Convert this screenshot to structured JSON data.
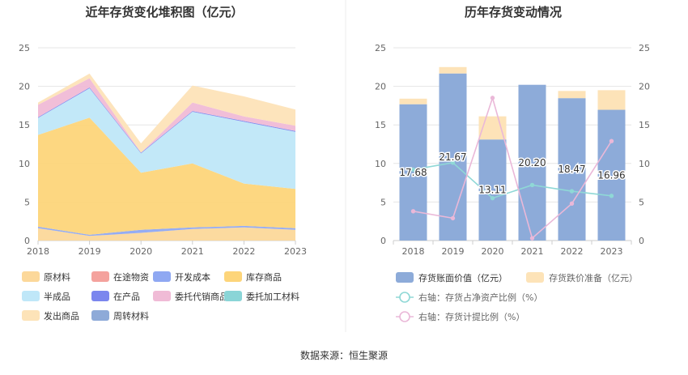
{
  "source": "数据来源：恒生聚源",
  "chart_data": [
    {
      "type": "area",
      "stacked": true,
      "title": "近年存货变化堆积图（亿元）",
      "x": [
        "2018",
        "2019",
        "2020",
        "2021",
        "2022",
        "2023"
      ],
      "ylim": [
        0,
        25
      ],
      "yticks": [
        0,
        5,
        10,
        15,
        20,
        25
      ],
      "grid": true,
      "legend_position": "bottom",
      "series": [
        {
          "name": "原材料",
          "color": "#fcd89a",
          "values": [
            1.6,
            0.6,
            1.0,
            1.5,
            1.7,
            1.4
          ]
        },
        {
          "name": "在途物资",
          "color": "#f4a29d",
          "values": [
            0,
            0,
            0,
            0,
            0,
            0
          ]
        },
        {
          "name": "开发成本",
          "color": "#8fa8f2",
          "values": [
            0.2,
            0.15,
            0.4,
            0.2,
            0.2,
            0.2
          ]
        },
        {
          "name": "库存商品",
          "color": "#fdd57a",
          "values": [
            11.9,
            15.2,
            7.4,
            8.3,
            5.5,
            5.1
          ]
        },
        {
          "name": "半成品",
          "color": "#bfe7f8",
          "values": [
            2.2,
            3.8,
            2.5,
            6.7,
            8.0,
            7.4
          ]
        },
        {
          "name": "在产品",
          "color": "#7b86ee",
          "values": [
            0.1,
            0.1,
            0.1,
            0.1,
            0.1,
            0.1
          ]
        },
        {
          "name": "委托代销商品",
          "color": "#f0bbd6",
          "values": [
            1.6,
            1.2,
            0,
            1.1,
            0.6,
            0.7
          ]
        },
        {
          "name": "委托加工材料",
          "color": "#8ad5d7",
          "values": [
            0,
            0,
            0,
            0,
            0,
            0
          ]
        },
        {
          "name": "发出商品",
          "color": "#fde3b8",
          "values": [
            0.3,
            0.6,
            1.2,
            2.2,
            2.6,
            2.1
          ]
        },
        {
          "name": "周转材料",
          "color": "#8eaad8",
          "values": [
            0,
            0,
            0,
            0,
            0,
            0
          ]
        }
      ]
    },
    {
      "type": "bar",
      "stacked": true,
      "title": "历年存货变动情况",
      "categories": [
        "2018",
        "2019",
        "2020",
        "2021",
        "2022",
        "2023"
      ],
      "ylim": [
        0,
        25
      ],
      "yticks": [
        0,
        5,
        10,
        15,
        20,
        25
      ],
      "y2lim": [
        0,
        25
      ],
      "y2ticks": [
        0,
        5,
        10,
        15,
        20,
        25
      ],
      "grid": true,
      "legend_position": "bottom",
      "series": [
        {
          "name": "存货账面价值（亿元）",
          "color": "#8dabd9",
          "values": [
            17.68,
            21.67,
            13.11,
            20.2,
            18.47,
            16.96
          ],
          "labels": [
            "17.68",
            "21.67",
            "13.11",
            "20.20",
            "18.47",
            "16.96"
          ]
        },
        {
          "name": "存货跌价准备（亿元）",
          "color": "#fde3b8",
          "values": [
            0.72,
            0.83,
            3.0,
            0,
            0.93,
            2.54
          ]
        },
        {
          "name": "右轴：存货占净资产比例（%）",
          "type": "line",
          "axis": "right",
          "color": "#8fd8d6",
          "values": [
            9.2,
            10.1,
            5.5,
            7.2,
            6.4,
            5.8
          ]
        },
        {
          "name": "右轴：存货计提比例（%）",
          "type": "line",
          "axis": "right",
          "color": "#eab8d8",
          "values": [
            3.8,
            2.9,
            18.5,
            0.3,
            4.8,
            12.9
          ]
        }
      ]
    }
  ]
}
